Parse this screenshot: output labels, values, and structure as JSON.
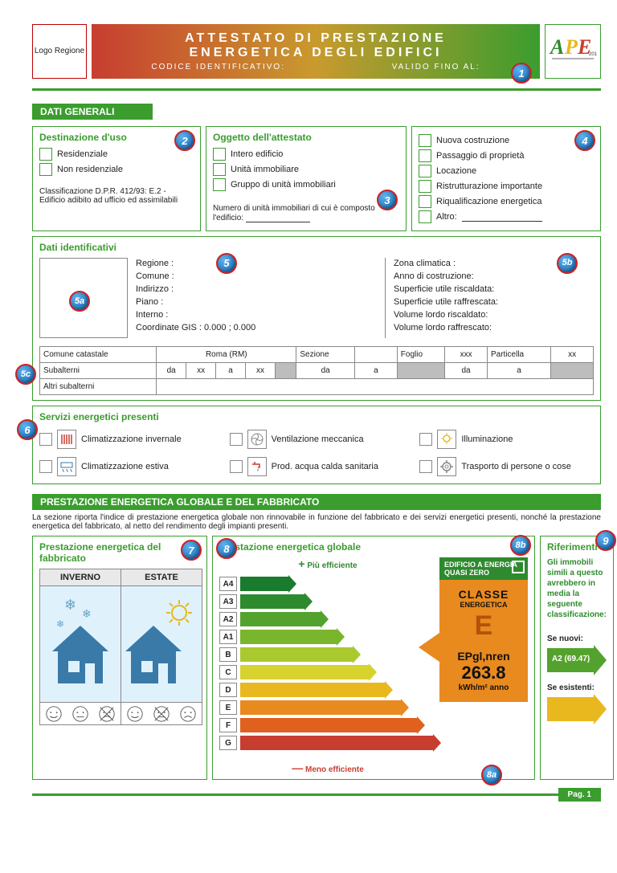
{
  "header": {
    "logo_label": "Logo Regione",
    "title_l1": "ATTESTATO DI PRESTAZIONE",
    "title_l2": "ENERGETICA DEGLI EDIFICI",
    "codice_lbl": "CODICE IDENTIFICATIVO:",
    "valido_lbl": "VALIDO FINO AL:",
    "ape_text": "APE",
    "ape_year": "2015"
  },
  "sections": {
    "dati_generali": "DATI GENERALI",
    "prestazione": "PRESTAZIONE ENERGETICA GLOBALE  E DEL FABBRICATO"
  },
  "destinazione": {
    "title": "Destinazione d'uso",
    "opt1": "Residenziale",
    "opt2": "Non residenziale",
    "classif": "Classificazione D.P.R. 412/93: E.2 - Edificio adibito ad ufficio ed assimilabili"
  },
  "oggetto": {
    "title": "Oggetto dell'attestato",
    "opt1": "Intero edificio",
    "opt2": "Unità immobiliare",
    "opt3": "Gruppo di unità immobiliari",
    "num_lbl": "Numero di unità immobiliari di cui è composto l'edificio:"
  },
  "motiv": {
    "opt1": "Nuova costruzione",
    "opt2": "Passaggio di proprietà",
    "opt3": "Locazione",
    "opt4": "Ristrutturazione importante",
    "opt5": "Riqualificazione energetica",
    "opt6": "Altro:"
  },
  "ident": {
    "title": "Dati identificativi",
    "left": {
      "regione": "Regione :",
      "comune": "Comune :",
      "indirizzo": "Indirizzo :",
      "piano": "Piano :",
      "interno": "Interno :",
      "gis": "Coordinate GIS : 0.000 ; 0.000"
    },
    "right": {
      "zona": "Zona climatica :",
      "anno": "Anno di costruzione:",
      "sup_r": "Superficie utile riscaldata:",
      "sup_f": "Superficie utile raffrescata:",
      "vol_r": "Volume lordo riscaldato:",
      "vol_f": "Volume lordo raffrescato:"
    }
  },
  "catasto": {
    "comune_lbl": "Comune catastale",
    "comune_val": "Roma (RM)",
    "sezione": "Sezione",
    "foglio": "Foglio",
    "foglio_val": "xxx",
    "particella": "Particella",
    "particella_val": "xx",
    "subalterni": "Subalterni",
    "da": "da",
    "a": "a",
    "xx": "xx",
    "altri": "Altri subalterni"
  },
  "servizi": {
    "title": "Servizi energetici presenti",
    "s1": "Climatizzazione invernale",
    "s2": "Ventilazione meccanica",
    "s3": "Illuminazione",
    "s4": "Climatizzazione estiva",
    "s5": "Prod. acqua calda sanitaria",
    "s6": "Trasporto di persone o cose"
  },
  "prest_desc": "La sezione riporta l'indice di prestazione energetica globale non rinnovabile in funzione del fabbricato e dei servizi energetici presenti, nonché la prestazione energetica del fabbricato, al netto del rendimento degli impianti presenti.",
  "fabbricato": {
    "title": "Prestazione energetica del fabbricato",
    "inverno": "INVERNO",
    "estate": "ESTATE"
  },
  "globale": {
    "title": "Prestazione energetica globale",
    "piu": "Più efficiente",
    "meno": "Meno efficiente",
    "classes": [
      "A4",
      "A3",
      "A2",
      "A1",
      "B",
      "C",
      "D",
      "E",
      "F",
      "G"
    ],
    "colors": [
      "#1a7a2e",
      "#2e8a2e",
      "#54a22e",
      "#7ab52e",
      "#a9c92e",
      "#d6d22e",
      "#e9b81f",
      "#e98a1f",
      "#e0601e",
      "#c73e30"
    ],
    "widths": [
      60,
      80,
      100,
      120,
      140,
      160,
      180,
      200,
      220,
      240
    ]
  },
  "classe": {
    "eaqz": "EDIFICIO A ENERGIA QUASI ZERO",
    "t1": "CLASSE",
    "t2": "ENERGETICA",
    "cls": "E",
    "ep": "EPgl,nren",
    "val": "263.8",
    "unit": "kWh/m² anno"
  },
  "rif": {
    "title": "Riferimenti",
    "desc": "Gli immobili simili a questo avrebbero in media la seguente classificazione:",
    "nuovi_lbl": "Se nuovi:",
    "nuovi_val": "A2 (69.47)",
    "esist_lbl": "Se esistenti:",
    "nuovi_color": "#54a22e",
    "esist_color": "#e9b81f"
  },
  "footer": {
    "pag": "Pag. 1"
  },
  "badges": {
    "b1": "1",
    "b2": "2",
    "b3": "3",
    "b4": "4",
    "b5": "5",
    "b5a": "5a",
    "b5b": "5b",
    "b5c": "5c",
    "b6": "6",
    "b7": "7",
    "b8": "8",
    "b8a": "8a",
    "b8b": "8b",
    "b9": "9"
  }
}
